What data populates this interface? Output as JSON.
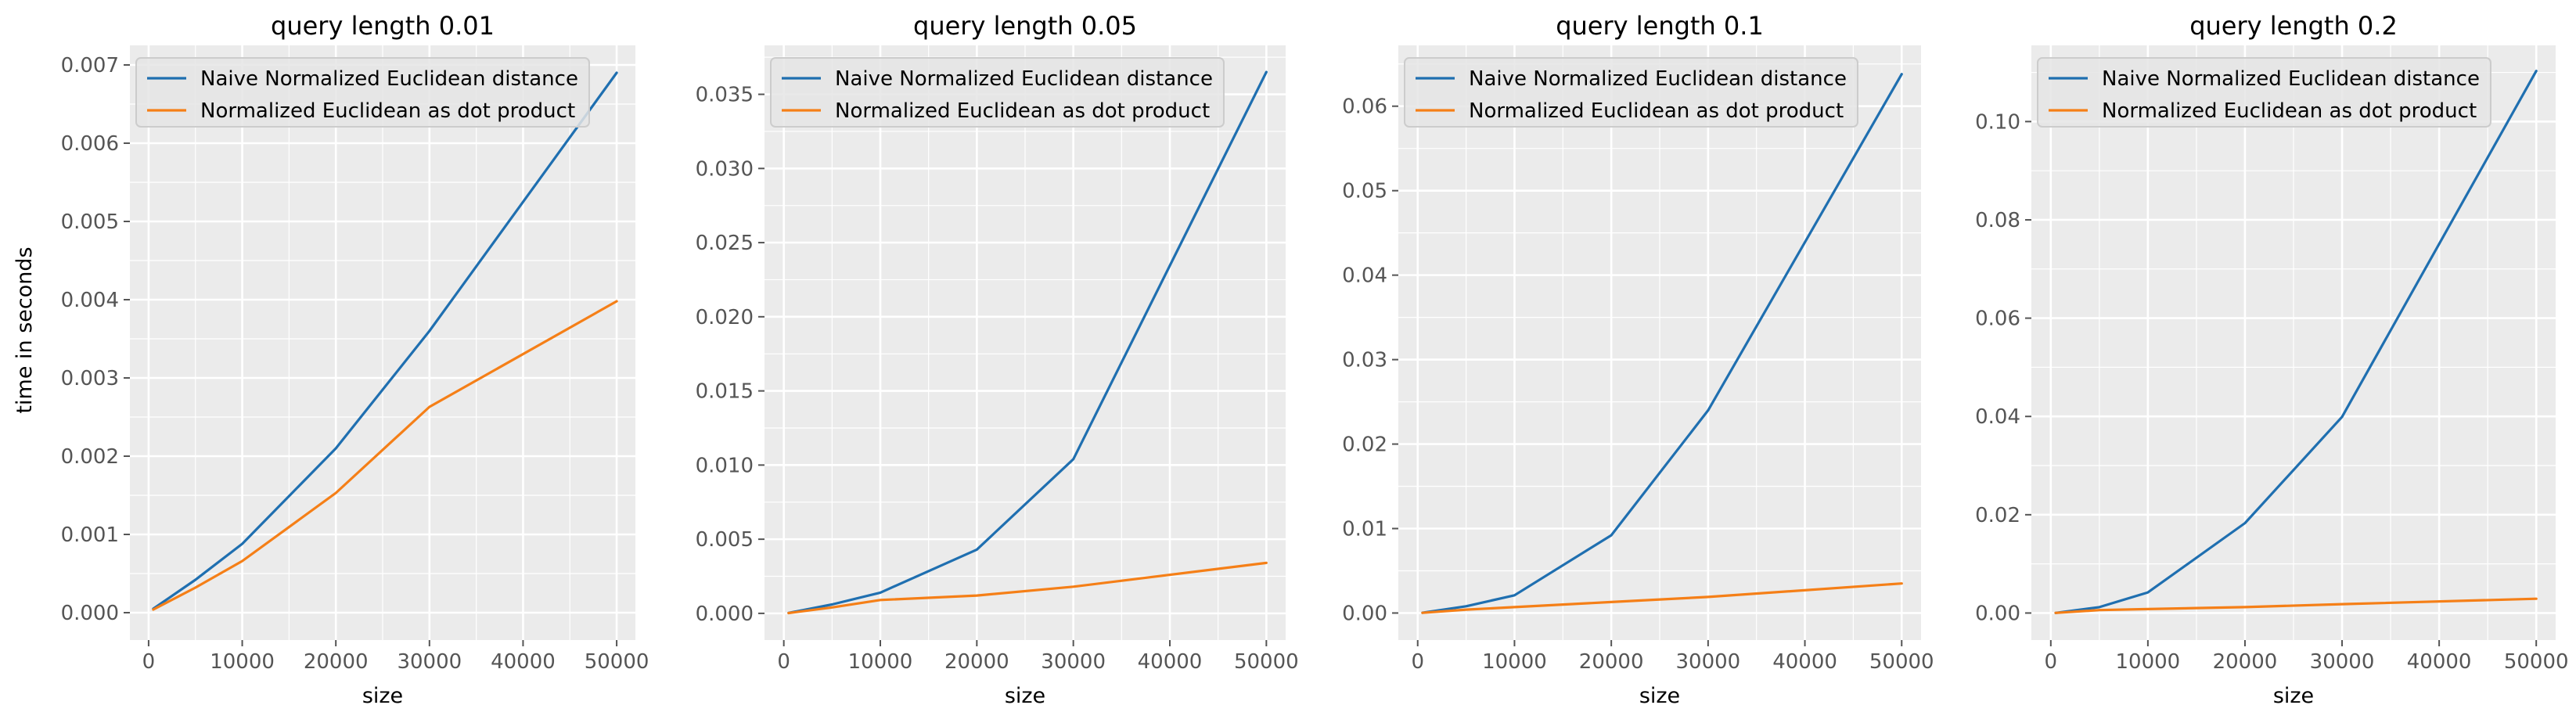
{
  "figure": {
    "ylabel": "time in seconds"
  },
  "colors": {
    "series_0": "#1f6fb0",
    "series_1": "#f57f17"
  },
  "chart_data": [
    {
      "type": "line",
      "title": "query length 0.01",
      "xlabel": "size",
      "ylabel": "time in seconds",
      "x": [
        500,
        5000,
        10000,
        20000,
        30000,
        50000
      ],
      "xlim": [
        -2000,
        52000
      ],
      "ylim": [
        -0.00035,
        0.00725
      ],
      "xticks": [
        0,
        10000,
        20000,
        30000,
        40000,
        50000
      ],
      "xtick_labels": [
        "0",
        "10000",
        "20000",
        "30000",
        "40000",
        "50000"
      ],
      "yticks": [
        0,
        0.001,
        0.002,
        0.003,
        0.004,
        0.005,
        0.006,
        0.007
      ],
      "ytick_labels": [
        "0.000",
        "0.001",
        "0.002",
        "0.003",
        "0.004",
        "0.005",
        "0.006",
        "0.007"
      ],
      "grid": true,
      "legend": "upper-left",
      "series": [
        {
          "name": "Naive Normalized Euclidean distance",
          "values": [
            5e-05,
            0.00042,
            0.00088,
            0.0021,
            0.0036,
            0.0069
          ]
        },
        {
          "name": "Normalized Euclidean as dot product",
          "values": [
            4e-05,
            0.00032,
            0.00066,
            0.00153,
            0.00263,
            0.00398
          ]
        }
      ]
    },
    {
      "type": "line",
      "title": "query length 0.05",
      "xlabel": "size",
      "ylabel": "",
      "x": [
        500,
        5000,
        10000,
        20000,
        30000,
        50000
      ],
      "xlim": [
        -2000,
        52000
      ],
      "ylim": [
        -0.0018,
        0.0383
      ],
      "xticks": [
        0,
        10000,
        20000,
        30000,
        40000,
        50000
      ],
      "xtick_labels": [
        "0",
        "10000",
        "20000",
        "30000",
        "40000",
        "50000"
      ],
      "yticks": [
        0,
        0.005,
        0.01,
        0.015,
        0.02,
        0.025,
        0.03,
        0.035
      ],
      "ytick_labels": [
        "0.000",
        "0.005",
        "0.010",
        "0.015",
        "0.020",
        "0.025",
        "0.030",
        "0.035"
      ],
      "grid": true,
      "legend": "upper-left",
      "series": [
        {
          "name": "Naive Normalized Euclidean distance",
          "values": [
            3e-05,
            0.0006,
            0.0014,
            0.0043,
            0.0104,
            0.0365
          ]
        },
        {
          "name": "Normalized Euclidean as dot product",
          "values": [
            2e-05,
            0.0004,
            0.0009,
            0.0012,
            0.0018,
            0.0034
          ]
        }
      ]
    },
    {
      "type": "line",
      "title": "query length 0.1",
      "xlabel": "size",
      "ylabel": "",
      "x": [
        500,
        5000,
        10000,
        20000,
        30000,
        50000
      ],
      "xlim": [
        -2000,
        52000
      ],
      "ylim": [
        -0.0032,
        0.0672
      ],
      "xticks": [
        0,
        10000,
        20000,
        30000,
        40000,
        50000
      ],
      "xtick_labels": [
        "0",
        "10000",
        "20000",
        "30000",
        "40000",
        "50000"
      ],
      "yticks": [
        0,
        0.01,
        0.02,
        0.03,
        0.04,
        0.05,
        0.06
      ],
      "ytick_labels": [
        "0.00",
        "0.01",
        "0.02",
        "0.03",
        "0.04",
        "0.05",
        "0.06"
      ],
      "grid": true,
      "legend": "upper-left",
      "series": [
        {
          "name": "Naive Normalized Euclidean distance",
          "values": [
            3e-05,
            0.0008,
            0.0021,
            0.0092,
            0.024,
            0.0638
          ]
        },
        {
          "name": "Normalized Euclidean as dot product",
          "values": [
            2e-05,
            0.0004,
            0.0007,
            0.0013,
            0.0019,
            0.0035
          ]
        }
      ]
    },
    {
      "type": "line",
      "title": "query length 0.2",
      "xlabel": "size",
      "ylabel": "",
      "x": [
        500,
        5000,
        10000,
        20000,
        30000,
        50000
      ],
      "xlim": [
        -2000,
        52000
      ],
      "ylim": [
        -0.0055,
        0.1155
      ],
      "xticks": [
        0,
        10000,
        20000,
        30000,
        40000,
        50000
      ],
      "xtick_labels": [
        "0",
        "10000",
        "20000",
        "30000",
        "40000",
        "50000"
      ],
      "yticks": [
        0,
        0.02,
        0.04,
        0.06,
        0.08,
        0.1
      ],
      "ytick_labels": [
        "0.00",
        "0.02",
        "0.04",
        "0.06",
        "0.08",
        "0.10"
      ],
      "grid": true,
      "legend": "upper-left",
      "series": [
        {
          "name": "Naive Normalized Euclidean distance",
          "values": [
            2e-05,
            0.0012,
            0.0042,
            0.0183,
            0.0399,
            0.1103
          ]
        },
        {
          "name": "Normalized Euclidean as dot product",
          "values": [
            2e-05,
            0.0006,
            0.0008,
            0.0012,
            0.0018,
            0.0029
          ]
        }
      ]
    }
  ]
}
